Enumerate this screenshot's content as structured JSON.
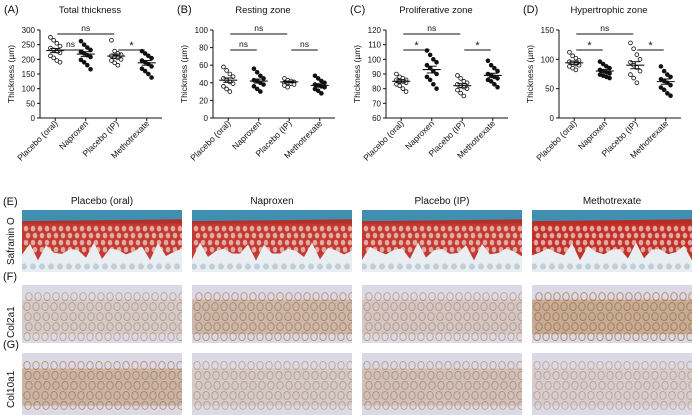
{
  "panels": [
    {
      "letter": "(A)",
      "title": "Total thickness",
      "ylabel": "Thickness (µm)",
      "categories": [
        "Placebo (oral)",
        "Naproxen",
        "Placebo (IP)",
        "Methotrexate"
      ],
      "ylim": [
        0,
        300
      ],
      "yticks": [
        "0",
        "50",
        "100",
        "150",
        "200",
        "250",
        "300"
      ],
      "sig": [
        {
          "from": 0,
          "to": 2,
          "label": "ns"
        },
        {
          "from": 0,
          "to": 1,
          "label": "ns"
        },
        {
          "from": 2,
          "to": 3,
          "label": "*"
        }
      ]
    },
    {
      "letter": "(B)",
      "title": "Resting zone",
      "ylabel": "Thickness (µm)",
      "categories": [
        "Placebo (oral)",
        "Naproxen",
        "Placebo (IP)",
        "Methotrexate"
      ],
      "ylim": [
        0,
        100
      ],
      "yticks": [
        "0",
        "20",
        "40",
        "60",
        "80",
        "100"
      ],
      "sig": [
        {
          "from": 0,
          "to": 2,
          "label": "ns"
        },
        {
          "from": 0,
          "to": 1,
          "label": "ns"
        },
        {
          "from": 2,
          "to": 3,
          "label": "ns"
        }
      ]
    },
    {
      "letter": "(C)",
      "title": "Proliferative zone",
      "ylabel": "Thickness (µm)",
      "categories": [
        "Placebo (oral)",
        "Naproxen",
        "Placebo (IP)",
        "Methotrexate"
      ],
      "ylim": [
        60,
        120
      ],
      "yticks": [
        "60",
        "70",
        "80",
        "90",
        "100",
        "110",
        "120"
      ],
      "sig": [
        {
          "from": 0,
          "to": 2,
          "label": "ns"
        },
        {
          "from": 0,
          "to": 1,
          "label": "*"
        },
        {
          "from": 2,
          "to": 3,
          "label": "*"
        }
      ]
    },
    {
      "letter": "(D)",
      "title": "Hypertrophic zone",
      "ylabel": "Thickness (µm)",
      "categories": [
        "Placebo (oral)",
        "Naproxen",
        "Placebo (IP)",
        "Methotrexate"
      ],
      "ylim": [
        0,
        150
      ],
      "yticks": [
        "0",
        "50",
        "100",
        "150"
      ],
      "sig": [
        {
          "from": 0,
          "to": 2,
          "label": "ns"
        },
        {
          "from": 0,
          "to": 1,
          "label": "*"
        },
        {
          "from": 2,
          "to": 3,
          "label": "*"
        }
      ]
    }
  ],
  "chart_data": [
    {
      "type": "scatter",
      "title": "Total thickness",
      "ylabel": "Thickness (µm)",
      "categories": [
        "Placebo (oral)",
        "Naproxen",
        "Placebo (IP)",
        "Methotrexate"
      ],
      "ylim": [
        0,
        300
      ],
      "series": [
        {
          "markers": "open",
          "values": [
            275,
            265,
            255,
            245,
            238,
            232,
            228,
            222,
            212,
            205,
            196,
            190
          ],
          "mean": 230,
          "sem": 7
        },
        {
          "markers": "filled",
          "values": [
            262,
            250,
            240,
            232,
            226,
            220,
            214,
            208,
            198,
            190,
            180,
            166
          ],
          "mean": 218,
          "sem": 8
        },
        {
          "markers": "open",
          "values": [
            265,
            228,
            220,
            216,
            212,
            208,
            205,
            200,
            196,
            188,
            180
          ],
          "mean": 211,
          "sem": 7
        },
        {
          "markers": "filled",
          "values": [
            228,
            220,
            212,
            204,
            196,
            190,
            184,
            176,
            168,
            160,
            150,
            138
          ],
          "mean": 188,
          "sem": 8
        }
      ]
    },
    {
      "type": "scatter",
      "title": "Resting zone",
      "ylabel": "Thickness (µm)",
      "categories": [
        "Placebo (oral)",
        "Naproxen",
        "Placebo (IP)",
        "Methotrexate"
      ],
      "ylim": [
        0,
        100
      ],
      "series": [
        {
          "markers": "open",
          "values": [
            58,
            54,
            50,
            47,
            45,
            43,
            41,
            39,
            36,
            33,
            30
          ],
          "mean": 43,
          "sem": 2.5
        },
        {
          "markers": "filled",
          "values": [
            56,
            52,
            48,
            45,
            43,
            42,
            40,
            38,
            36,
            33,
            30
          ],
          "mean": 42,
          "sem": 2.3
        },
        {
          "markers": "open",
          "values": [
            45,
            43,
            42,
            41,
            40,
            40,
            39,
            38,
            37,
            35
          ],
          "mean": 41,
          "sem": 1
        },
        {
          "markers": "filled",
          "values": [
            48,
            45,
            42,
            40,
            38,
            37,
            36,
            35,
            33,
            31,
            28
          ],
          "mean": 37,
          "sem": 1.8
        }
      ]
    },
    {
      "type": "scatter",
      "title": "Proliferative zone",
      "ylabel": "Thickness (µm)",
      "categories": [
        "Placebo (oral)",
        "Naproxen",
        "Placebo (IP)",
        "Methotrexate"
      ],
      "ylim": [
        60,
        120
      ],
      "series": [
        {
          "markers": "open",
          "values": [
            90,
            88,
            87,
            86,
            86,
            85,
            85,
            84,
            83,
            82,
            80,
            78
          ],
          "mean": 85,
          "sem": 1
        },
        {
          "markers": "filled",
          "values": [
            106,
            103,
            100,
            98,
            96,
            94,
            92,
            90,
            88,
            86,
            83,
            80
          ],
          "mean": 93,
          "sem": 2.3
        },
        {
          "markers": "open",
          "values": [
            89,
            87,
            85,
            84,
            83,
            82,
            81,
            80,
            79,
            77,
            75
          ],
          "mean": 82,
          "sem": 1.4
        },
        {
          "markers": "filled",
          "values": [
            99,
            96,
            94,
            92,
            90,
            89,
            88,
            87,
            86,
            85,
            83,
            81
          ],
          "mean": 89,
          "sem": 1.5
        }
      ]
    },
    {
      "type": "scatter",
      "title": "Hypertrophic zone",
      "ylabel": "Thickness (µm)",
      "categories": [
        "Placebo (oral)",
        "Naproxen",
        "Placebo (IP)",
        "Methotrexate"
      ],
      "ylim": [
        0,
        150
      ],
      "series": [
        {
          "markers": "open",
          "values": [
            112,
            106,
            102,
            98,
            96,
            94,
            92,
            90,
            88,
            85,
            82
          ],
          "mean": 94,
          "sem": 3
        },
        {
          "markers": "filled",
          "values": [
            96,
            92,
            88,
            85,
            82,
            80,
            78,
            76,
            74,
            72,
            70,
            68
          ],
          "mean": 80,
          "sem": 2.5
        },
        {
          "markers": "open",
          "values": [
            128,
            118,
            108,
            100,
            95,
            90,
            86,
            80,
            74,
            68,
            60
          ],
          "mean": 90,
          "sem": 6
        },
        {
          "markers": "filled",
          "values": [
            88,
            80,
            74,
            70,
            66,
            63,
            60,
            56,
            52,
            48,
            42,
            38
          ],
          "mean": 62,
          "sem": 4.5
        }
      ]
    }
  ],
  "histology": {
    "columns": [
      "Placebo (oral)",
      "Naproxen",
      "Placebo (IP)",
      "Methotrexate"
    ],
    "rows": [
      {
        "letter": "(E)",
        "label": "Safranin O",
        "stain": "safranin"
      },
      {
        "letter": "(F)",
        "label": "Col2a1",
        "stain": "col2"
      },
      {
        "letter": "(G)",
        "label": "Col10a1",
        "stain": "col10"
      }
    ]
  },
  "colors": {
    "safranin_red": "#c0261c",
    "safranin_blue": "#3f8fb0",
    "ihc_brown": "#a36a2e",
    "ihc_background": "#dcd9e6"
  }
}
